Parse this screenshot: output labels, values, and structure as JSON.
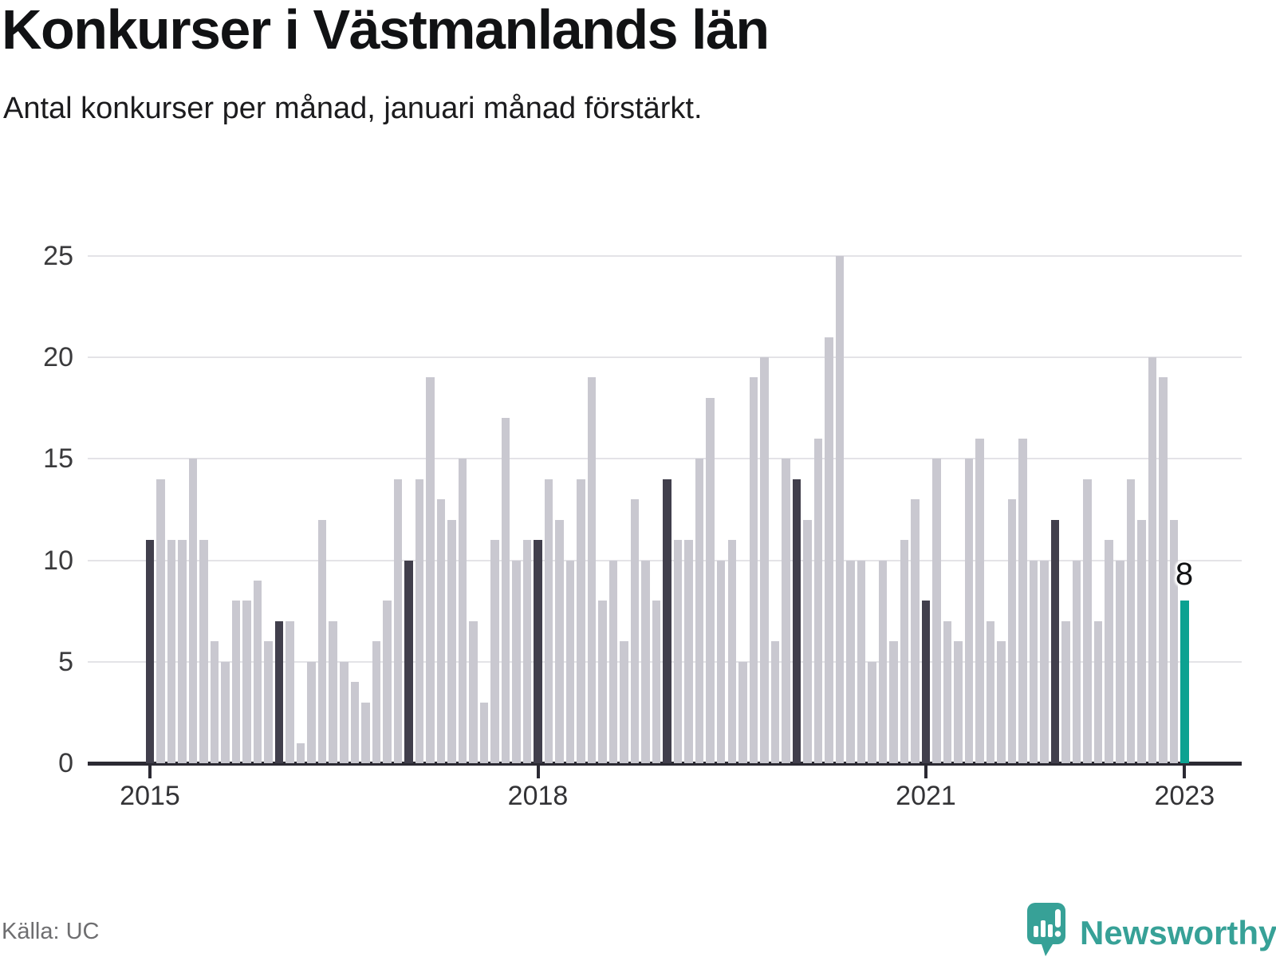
{
  "header": {
    "title": "Konkurser i Västmanlands län",
    "subtitle": "Antal konkurser per månad, januari månad förstärkt."
  },
  "footer": {
    "source": "Källa: UC",
    "logo_text": "Newsworthy"
  },
  "colors": {
    "bar_default": "#c9c8d0",
    "bar_january": "#413f4c",
    "bar_highlight": "#0ba291",
    "axis": "#2b2a33",
    "gridline": "#e4e3e7",
    "logo_teal": "#37a197"
  },
  "chart_data": {
    "type": "bar",
    "title": "Konkurser i Västmanlands län",
    "subtitle": "Antal konkurser per månad, januari månad förstärkt.",
    "source": "Källa: UC",
    "xlabel": "",
    "ylabel": "",
    "x_axis": {
      "start_year": 2015,
      "start_month": 1,
      "end_year": 2023,
      "end_month": 1,
      "tick_labels": [
        "2015",
        "2018",
        "2021",
        "2023"
      ],
      "tick_month_indices": [
        0,
        36,
        72,
        96
      ]
    },
    "y_axis": {
      "ticks": [
        0,
        5,
        10,
        15,
        20,
        25
      ],
      "ylim": [
        0,
        25
      ],
      "grid": true
    },
    "highlight": {
      "january_bars": "dark",
      "latest": {
        "month": "2023-01",
        "value": 8,
        "label": "8"
      }
    },
    "series": [
      {
        "year": 2015,
        "values": [
          11,
          14,
          11,
          11,
          15,
          11,
          6,
          5,
          8,
          8,
          9,
          6
        ]
      },
      {
        "year": 2016,
        "values": [
          7,
          7,
          1,
          5,
          12,
          7,
          5,
          4,
          3,
          6,
          8,
          14
        ]
      },
      {
        "year": 2017,
        "values": [
          10,
          14,
          19,
          13,
          12,
          15,
          7,
          3,
          11,
          17,
          10,
          11
        ]
      },
      {
        "year": 2018,
        "values": [
          11,
          14,
          12,
          10,
          14,
          19,
          8,
          10,
          6,
          13,
          10,
          8
        ]
      },
      {
        "year": 2019,
        "values": [
          14,
          11,
          11,
          15,
          18,
          10,
          11,
          5,
          19,
          20,
          6,
          15
        ]
      },
      {
        "year": 2020,
        "values": [
          14,
          12,
          16,
          21,
          25,
          10,
          10,
          5,
          10,
          6,
          11,
          13
        ]
      },
      {
        "year": 2021,
        "values": [
          8,
          15,
          7,
          6,
          15,
          16,
          7,
          6,
          13,
          16,
          10,
          10
        ]
      },
      {
        "year": 2022,
        "values": [
          12,
          7,
          10,
          14,
          7,
          11,
          10,
          14,
          12,
          20,
          19,
          12
        ]
      },
      {
        "year": 2023,
        "values": [
          8
        ]
      }
    ]
  }
}
